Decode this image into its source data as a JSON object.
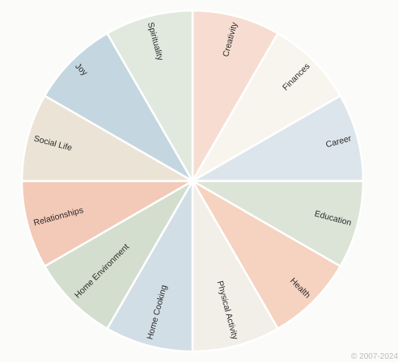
{
  "wheel": {
    "segments": [
      {
        "label": "Creativity",
        "color": "#f7ddd1"
      },
      {
        "label": "Finances",
        "color": "#f8f5ee"
      },
      {
        "label": "Career",
        "color": "#dde5ec"
      },
      {
        "label": "Education",
        "color": "#dce4d8"
      },
      {
        "label": "Health",
        "color": "#f6d2c0"
      },
      {
        "label": "Physical Activity",
        "color": "#f2eee8"
      },
      {
        "label": "Home Cooking",
        "color": "#d2dee6"
      },
      {
        "label": "Home Environment",
        "color": "#d3dece"
      },
      {
        "label": "Relationships",
        "color": "#f3c9b7"
      },
      {
        "label": "Social Life",
        "color": "#ebe4d6"
      },
      {
        "label": "Joy",
        "color": "#c4d6e0"
      },
      {
        "label": "Spirituality",
        "color": "#e1e9df"
      }
    ]
  },
  "footer": {
    "text": "© 2007-2024"
  }
}
